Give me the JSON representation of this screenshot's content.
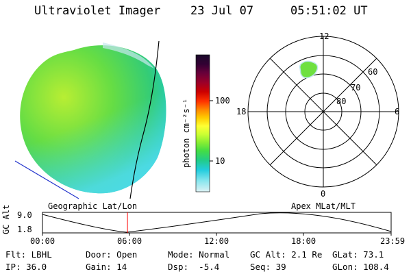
{
  "header": {
    "instrument": "Ultraviolet Imager",
    "date": "23 Jul 07",
    "time": "05:51:02 UT"
  },
  "geo_panel": {
    "label": "Geographic Lat/Lon"
  },
  "polar_panel": {
    "label": "Apex MLat/MLT",
    "mlt_labels": [
      "12",
      "18",
      "6",
      "0"
    ],
    "lat_labels": [
      "60",
      "70",
      "80"
    ]
  },
  "colorbar": {
    "unit": "photon cm⁻²s⁻¹",
    "ticks": [
      "100",
      "10"
    ],
    "colors": [
      "#1a0a2a",
      "#330033",
      "#66003a",
      "#99002a",
      "#cc0000",
      "#ff3300",
      "#ff8800",
      "#ffcc00",
      "#ffff33",
      "#ccff33",
      "#88ee33",
      "#44dd44",
      "#22cc88",
      "#22ccdd",
      "#88e6ee",
      "#ddf2f5"
    ]
  },
  "timeline": {
    "axis_label": "GC Alt",
    "y_ticks": [
      "9.0",
      "1.8"
    ],
    "x_ticks": [
      "00:00",
      "06:00",
      "12:00",
      "18:00",
      "23:59"
    ],
    "current_time_hours": 5.85
  },
  "info": {
    "row1": [
      {
        "key": "Flt:",
        "value": "LBHL"
      },
      {
        "key": "Door:",
        "value": "Open"
      },
      {
        "key": "Mode:",
        "value": "Normal"
      },
      {
        "key": "GC Alt:",
        "value": "2.1 Re"
      },
      {
        "key": "GLat:",
        "value": "73.1"
      }
    ],
    "row2": [
      {
        "key": "IP:",
        "value": "36.0"
      },
      {
        "key": "Gain:",
        "value": "14"
      },
      {
        "key": "Dsp:",
        "value": "-5.4"
      },
      {
        "key": "Seq:",
        "value": "39"
      },
      {
        "key": "GLon:",
        "value": "108.4"
      }
    ]
  }
}
